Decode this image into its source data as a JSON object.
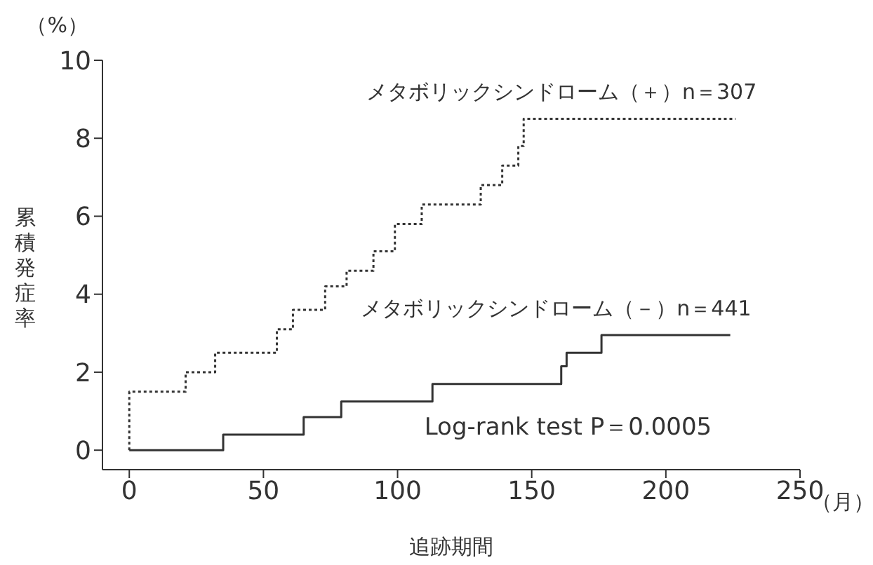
{
  "chart_data": {
    "type": "step",
    "xlabel": "追跡期間",
    "ylabel": "累積発症率",
    "xlim": [
      -10,
      250
    ],
    "ylim": [
      -0.5,
      10
    ],
    "xticks": [
      0,
      50,
      100,
      150,
      200,
      250
    ],
    "yticks": [
      0,
      2,
      4,
      6,
      8,
      10
    ],
    "grid": false,
    "legend": false,
    "marker": "none",
    "series": [
      {
        "name": "メタボリックシンドローム（＋）n＝307",
        "color": "#333333",
        "line_style": "dotted",
        "x": [
          0,
          0,
          21,
          32,
          55,
          61,
          73,
          81,
          91,
          99,
          109,
          131,
          139,
          145,
          147,
          226
        ],
        "values": [
          0,
          1.5,
          2.0,
          2.5,
          3.1,
          3.6,
          4.2,
          4.6,
          5.1,
          5.8,
          6.3,
          6.8,
          7.3,
          7.8,
          8.5,
          8.5
        ]
      },
      {
        "name": "メタボリックシンドローム（－）n＝441",
        "color": "#333333",
        "line_style": "solid",
        "x": [
          0,
          35,
          65,
          79,
          113,
          161,
          163,
          176,
          224
        ],
        "values": [
          0,
          0.4,
          0.85,
          1.25,
          1.7,
          2.15,
          2.5,
          2.95,
          2.95
        ]
      }
    ],
    "annotations": [
      "（%）",
      "（月）",
      "Log-rank test P＝0.0005"
    ]
  }
}
